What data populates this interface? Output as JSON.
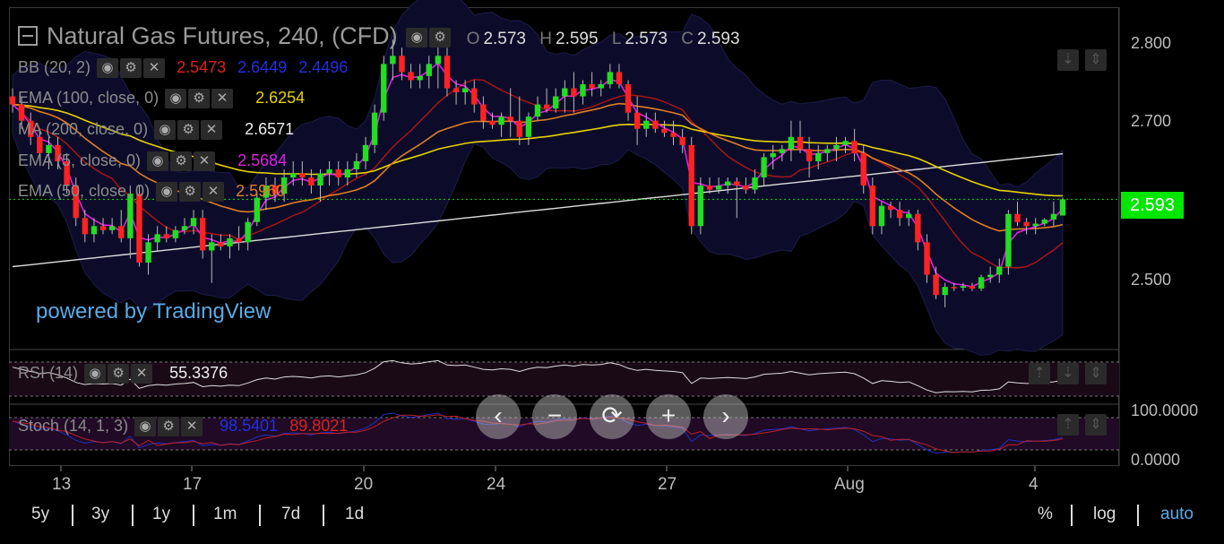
{
  "header": {
    "title": "Natural Gas Futures, 240, (CFD)",
    "ohlc": [
      {
        "k": "O",
        "v": "2.573"
      },
      {
        "k": "H",
        "v": "2.595"
      },
      {
        "k": "L",
        "v": "2.573"
      },
      {
        "k": "C",
        "v": "2.593"
      }
    ]
  },
  "indicators": {
    "bb": {
      "label": "BB (20, 2)",
      "v1": "2.5473",
      "v2": "2.6449",
      "v3": "2.4496"
    },
    "ema100": {
      "label": "EMA (100, close, 0)",
      "value": "2.6254"
    },
    "ma200": {
      "label": "MA (200, close, 0)",
      "value": "2.6571"
    },
    "ema_close": {
      "label": "EMA (5, close, 0)",
      "value": "2.5684"
    },
    "ema50": {
      "label": "EMA (50, close, 0)",
      "value": "2.5960"
    },
    "rsi": {
      "label": "RSI (14)",
      "value": "55.3376"
    },
    "stoch": {
      "label": "Stoch (14, 1, 3)",
      "v1": "98.5401",
      "v2": "89.8021"
    }
  },
  "price_axis": [
    "2.800",
    "2.700",
    "2.593",
    "2.500"
  ],
  "osc_axis": [
    "100.0000",
    "0.0000"
  ],
  "time_axis": [
    "13",
    "17",
    "20",
    "24",
    "27",
    "Aug",
    "4"
  ],
  "watermark": "powered by TradingView",
  "range_buttons": [
    "5y",
    "3y",
    "1y",
    "1m",
    "7d",
    "1d"
  ],
  "scale_buttons": [
    "%",
    "log",
    "auto"
  ],
  "nav_controls": [
    "‹",
    "−",
    "⟳",
    "+",
    "›"
  ],
  "colors": {
    "up": "#22dd22",
    "down": "#ff2222",
    "bb_fill": "#0c0c2a",
    "ema100": "#e6d200",
    "ma200": "#dddddd",
    "ema_fast": "#dd22dd",
    "ema50": "#e07d22",
    "bb_mid": "#b01515",
    "last_price": "#00e600",
    "link": "#5aa9e6"
  },
  "chart_data": {
    "type": "candlestick",
    "ylim": [
      2.41,
      2.83
    ],
    "last_price": 2.593,
    "candles": [
      [
        2.72,
        2.73,
        2.7,
        2.71
      ],
      [
        2.71,
        2.72,
        2.68,
        2.69
      ],
      [
        2.69,
        2.7,
        2.66,
        2.67
      ],
      [
        2.67,
        2.68,
        2.64,
        2.65
      ],
      [
        2.65,
        2.67,
        2.63,
        2.66
      ],
      [
        2.66,
        2.67,
        2.63,
        2.64
      ],
      [
        2.64,
        2.65,
        2.6,
        2.61
      ],
      [
        2.61,
        2.62,
        2.56,
        2.57
      ],
      [
        2.57,
        2.58,
        2.54,
        2.55
      ],
      [
        2.55,
        2.57,
        2.54,
        2.56
      ],
      [
        2.56,
        2.57,
        2.55,
        2.555
      ],
      [
        2.555,
        2.57,
        2.55,
        2.56
      ],
      [
        2.56,
        2.58,
        2.54,
        2.545
      ],
      [
        2.545,
        2.61,
        2.52,
        2.6
      ],
      [
        2.6,
        2.61,
        2.51,
        2.515
      ],
      [
        2.515,
        2.55,
        2.5,
        2.54
      ],
      [
        2.54,
        2.56,
        2.53,
        2.55
      ],
      [
        2.55,
        2.56,
        2.54,
        2.545
      ],
      [
        2.545,
        2.56,
        2.54,
        2.555
      ],
      [
        2.555,
        2.57,
        2.55,
        2.56
      ],
      [
        2.56,
        2.58,
        2.55,
        2.57
      ],
      [
        2.57,
        2.58,
        2.52,
        2.53
      ],
      [
        2.53,
        2.55,
        2.49,
        2.54
      ],
      [
        2.54,
        2.55,
        2.53,
        2.535
      ],
      [
        2.535,
        2.55,
        2.52,
        2.545
      ],
      [
        2.545,
        2.56,
        2.53,
        2.54
      ],
      [
        2.54,
        2.57,
        2.53,
        2.565
      ],
      [
        2.565,
        2.6,
        2.56,
        2.595
      ],
      [
        2.595,
        2.62,
        2.58,
        2.61
      ],
      [
        2.61,
        2.62,
        2.59,
        2.6
      ],
      [
        2.6,
        2.63,
        2.59,
        2.62
      ],
      [
        2.62,
        2.64,
        2.61,
        2.625
      ],
      [
        2.625,
        2.64,
        2.61,
        2.62
      ],
      [
        2.62,
        2.63,
        2.6,
        2.61
      ],
      [
        2.61,
        2.63,
        2.59,
        2.625
      ],
      [
        2.625,
        2.64,
        2.61,
        2.63
      ],
      [
        2.63,
        2.64,
        2.61,
        2.62
      ],
      [
        2.62,
        2.64,
        2.61,
        2.63
      ],
      [
        2.63,
        2.65,
        2.62,
        2.64
      ],
      [
        2.64,
        2.67,
        2.63,
        2.66
      ],
      [
        2.66,
        2.71,
        2.65,
        2.7
      ],
      [
        2.7,
        2.77,
        2.69,
        2.76
      ],
      [
        2.76,
        2.79,
        2.74,
        2.77
      ],
      [
        2.77,
        2.78,
        2.74,
        2.75
      ],
      [
        2.75,
        2.76,
        2.73,
        2.74
      ],
      [
        2.74,
        2.76,
        2.73,
        2.745
      ],
      [
        2.745,
        2.77,
        2.73,
        2.76
      ],
      [
        2.76,
        2.79,
        2.73,
        2.77
      ],
      [
        2.77,
        2.78,
        2.72,
        2.73
      ],
      [
        2.73,
        2.74,
        2.71,
        2.725
      ],
      [
        2.725,
        2.74,
        2.71,
        2.73
      ],
      [
        2.73,
        2.74,
        2.7,
        2.71
      ],
      [
        2.71,
        2.72,
        2.68,
        2.69
      ],
      [
        2.69,
        2.7,
        2.68,
        2.685
      ],
      [
        2.685,
        2.7,
        2.67,
        2.695
      ],
      [
        2.695,
        2.73,
        2.67,
        2.69
      ],
      [
        2.69,
        2.72,
        2.66,
        2.67
      ],
      [
        2.67,
        2.7,
        2.66,
        2.695
      ],
      [
        2.695,
        2.72,
        2.69,
        2.71
      ],
      [
        2.71,
        2.73,
        2.7,
        2.705
      ],
      [
        2.705,
        2.73,
        2.7,
        2.72
      ],
      [
        2.72,
        2.74,
        2.7,
        2.73
      ],
      [
        2.73,
        2.75,
        2.7,
        2.72
      ],
      [
        2.72,
        2.74,
        2.71,
        2.735
      ],
      [
        2.735,
        2.75,
        2.72,
        2.73
      ],
      [
        2.73,
        2.74,
        2.72,
        2.735
      ],
      [
        2.735,
        2.76,
        2.73,
        2.75
      ],
      [
        2.75,
        2.76,
        2.73,
        2.735
      ],
      [
        2.735,
        2.74,
        2.69,
        2.7
      ],
      [
        2.7,
        2.72,
        2.66,
        2.68
      ],
      [
        2.68,
        2.7,
        2.67,
        2.69
      ],
      [
        2.69,
        2.7,
        2.675,
        2.68
      ],
      [
        2.68,
        2.69,
        2.67,
        2.675
      ],
      [
        2.675,
        2.69,
        2.66,
        2.67
      ],
      [
        2.67,
        2.68,
        2.65,
        2.66
      ],
      [
        2.66,
        2.67,
        2.55,
        2.56
      ],
      [
        2.56,
        2.62,
        2.55,
        2.61
      ],
      [
        2.61,
        2.62,
        2.6,
        2.605
      ],
      [
        2.605,
        2.62,
        2.6,
        2.61
      ],
      [
        2.61,
        2.62,
        2.6,
        2.615
      ],
      [
        2.615,
        2.62,
        2.57,
        2.61
      ],
      [
        2.61,
        2.62,
        2.6,
        2.605
      ],
      [
        2.605,
        2.63,
        2.6,
        2.62
      ],
      [
        2.62,
        2.65,
        2.61,
        2.645
      ],
      [
        2.645,
        2.66,
        2.63,
        2.65
      ],
      [
        2.65,
        2.66,
        2.64,
        2.655
      ],
      [
        2.655,
        2.69,
        2.64,
        2.67
      ],
      [
        2.67,
        2.69,
        2.65,
        2.655
      ],
      [
        2.655,
        2.67,
        2.62,
        2.64
      ],
      [
        2.64,
        2.66,
        2.63,
        2.65
      ],
      [
        2.65,
        2.66,
        2.64,
        2.655
      ],
      [
        2.655,
        2.67,
        2.64,
        2.66
      ],
      [
        2.66,
        2.67,
        2.65,
        2.665
      ],
      [
        2.665,
        2.68,
        2.64,
        2.65
      ],
      [
        2.65,
        2.66,
        2.6,
        2.61
      ],
      [
        2.61,
        2.62,
        2.55,
        2.56
      ],
      [
        2.56,
        2.59,
        2.55,
        2.585
      ],
      [
        2.585,
        2.59,
        2.57,
        2.58
      ],
      [
        2.58,
        2.59,
        2.56,
        2.57
      ],
      [
        2.57,
        2.58,
        2.56,
        2.575
      ],
      [
        2.575,
        2.58,
        2.53,
        2.54
      ],
      [
        2.54,
        2.55,
        2.49,
        2.5
      ],
      [
        2.5,
        2.51,
        2.47,
        2.475
      ],
      [
        2.475,
        2.49,
        2.46,
        2.485
      ],
      [
        2.485,
        2.49,
        2.48,
        2.484
      ],
      [
        2.484,
        2.49,
        2.48,
        2.486
      ],
      [
        2.486,
        2.49,
        2.48,
        2.483
      ],
      [
        2.483,
        2.5,
        2.48,
        2.497
      ],
      [
        2.497,
        2.51,
        2.49,
        2.5
      ],
      [
        2.5,
        2.52,
        2.49,
        2.51
      ],
      [
        2.51,
        2.58,
        2.5,
        2.575
      ],
      [
        2.575,
        2.59,
        2.56,
        2.565
      ],
      [
        2.565,
        2.57,
        2.55,
        2.56
      ],
      [
        2.56,
        2.57,
        2.55,
        2.563
      ],
      [
        2.563,
        2.57,
        2.56,
        2.568
      ],
      [
        2.568,
        2.59,
        2.56,
        2.575
      ],
      [
        2.573,
        2.595,
        2.573,
        2.593
      ]
    ]
  }
}
